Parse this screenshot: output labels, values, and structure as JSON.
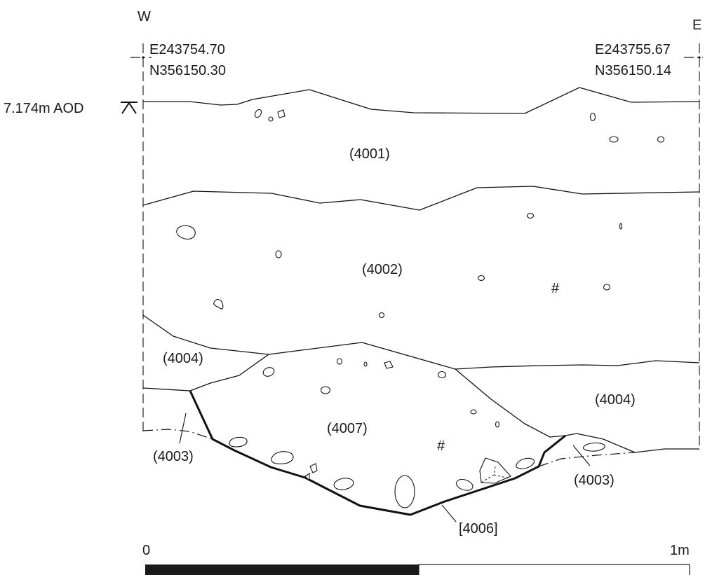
{
  "orientation": {
    "west": "W",
    "east": "E"
  },
  "coordinates": {
    "west_easting": "E243754.70",
    "west_northing": "N356150.30",
    "east_easting": "E243755.67",
    "east_northing": "N356150.14"
  },
  "datum": "7.174m AOD",
  "contexts": {
    "c4001": "(4001)",
    "c4002": "(4002)",
    "c4004_west": "(4004)",
    "c4004_east": "(4004)",
    "c4007": "(4007)",
    "c4003_west": "(4003)",
    "c4003_east": "(4003)",
    "cut4006": "[4006]"
  },
  "scale": {
    "start_label": "0",
    "end_label": "1m"
  },
  "symbols": {
    "hash": "#"
  }
}
